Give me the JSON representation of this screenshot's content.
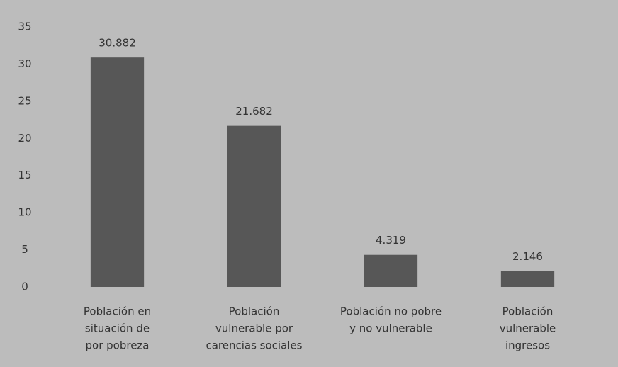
{
  "chart_data": {
    "type": "bar",
    "categories": [
      [
        "Población en",
        "situación de",
        "por pobreza"
      ],
      [
        "Población",
        "vulnerable por",
        "carencias sociales"
      ],
      [
        "Población no pobre",
        "y no vulnerable"
      ],
      [
        "Población",
        "vulnerable",
        "ingresos"
      ]
    ],
    "values": [
      30.882,
      21.682,
      4.319,
      2.146
    ],
    "color": "#575757",
    "ylim": [
      0,
      35
    ],
    "yticks": [
      0,
      5,
      10,
      15,
      20,
      25,
      30,
      35
    ],
    "grid": false
  }
}
